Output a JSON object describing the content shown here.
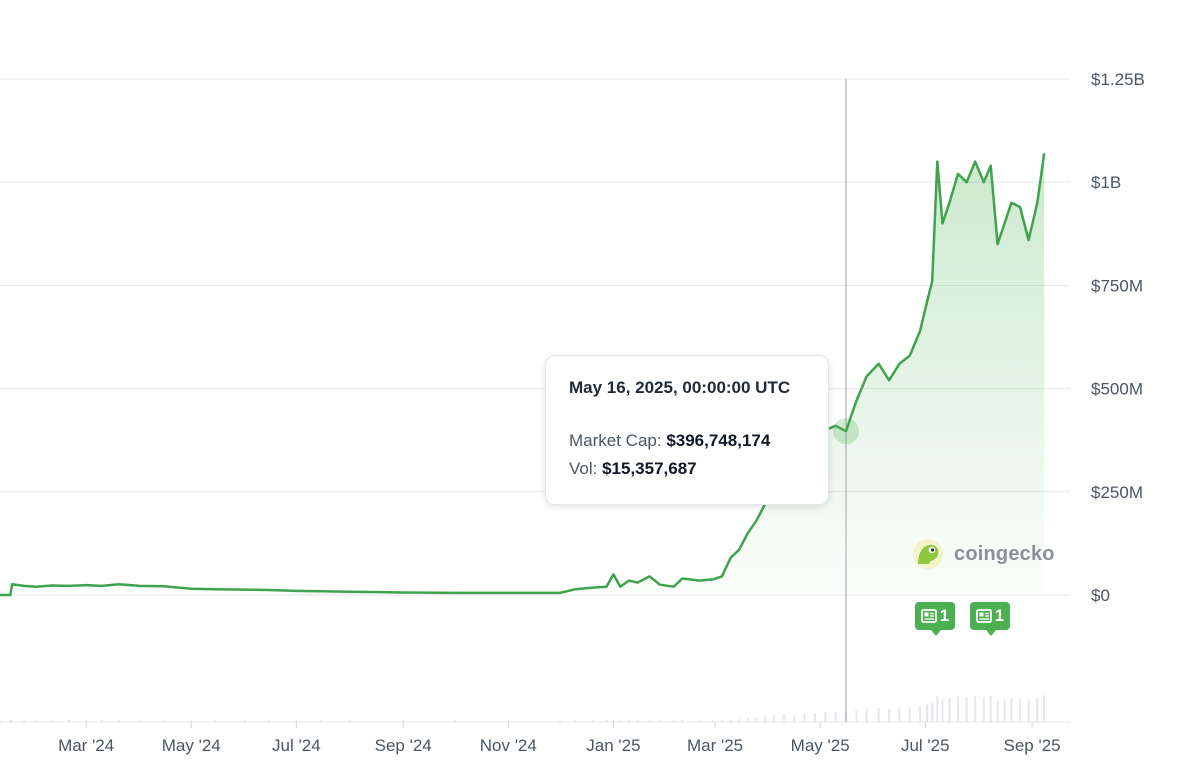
{
  "chart_data": {
    "type": "area",
    "title": "",
    "xlabel": "",
    "ylabel": "",
    "colors": {
      "line": "#3fa34d",
      "fill": "#4caf50",
      "grid": "#e5e7eb",
      "cursor": "#9ca3af",
      "volume": "#e5e7eb"
    },
    "y_ticks": [
      "$0",
      "$250M",
      "$500M",
      "$750M",
      "$1B",
      "$1.25B"
    ],
    "y_tick_values": [
      0,
      250000000,
      500000000,
      750000000,
      1000000000,
      1250000000
    ],
    "ylim": [
      0,
      1250000000
    ],
    "x_ticks": [
      "Mar '24",
      "May '24",
      "Jul '24",
      "Sep '24",
      "Nov '24",
      "Jan '25",
      "Mar '25",
      "May '25",
      "Jul '25",
      "Sep '25"
    ],
    "x_tick_dates": [
      "2024-03-01",
      "2024-05-01",
      "2024-07-01",
      "2024-09-01",
      "2024-11-01",
      "2025-01-01",
      "2025-03-01",
      "2025-05-01",
      "2025-07-01",
      "2025-09-01"
    ],
    "xlim": [
      "2024-01-11",
      "2025-09-23"
    ],
    "series": [
      {
        "label": "Market Cap",
        "points": [
          [
            "2024-01-11",
            0
          ],
          [
            "2024-01-17",
            0
          ],
          [
            "2024-01-18",
            26000000
          ],
          [
            "2024-01-25",
            22000000
          ],
          [
            "2024-02-01",
            20000000
          ],
          [
            "2024-02-10",
            23000000
          ],
          [
            "2024-02-20",
            22000000
          ],
          [
            "2024-03-01",
            24000000
          ],
          [
            "2024-03-10",
            22000000
          ],
          [
            "2024-03-20",
            26000000
          ],
          [
            "2024-04-01",
            22000000
          ],
          [
            "2024-04-15",
            21000000
          ],
          [
            "2024-05-01",
            15000000
          ],
          [
            "2024-05-15",
            14000000
          ],
          [
            "2024-06-01",
            13000000
          ],
          [
            "2024-06-15",
            12000000
          ],
          [
            "2024-07-01",
            10000000
          ],
          [
            "2024-07-15",
            9000000
          ],
          [
            "2024-08-01",
            8000000
          ],
          [
            "2024-09-01",
            6000000
          ],
          [
            "2024-10-01",
            5000000
          ],
          [
            "2024-11-01",
            5000000
          ],
          [
            "2024-12-01",
            5000000
          ],
          [
            "2024-12-10",
            14000000
          ],
          [
            "2024-12-20",
            18000000
          ],
          [
            "2024-12-28",
            20000000
          ],
          [
            "2025-01-01",
            50000000
          ],
          [
            "2025-01-05",
            20000000
          ],
          [
            "2025-01-10",
            35000000
          ],
          [
            "2025-01-15",
            30000000
          ],
          [
            "2025-01-22",
            45000000
          ],
          [
            "2025-01-28",
            25000000
          ],
          [
            "2025-02-05",
            20000000
          ],
          [
            "2025-02-10",
            40000000
          ],
          [
            "2025-02-20",
            35000000
          ],
          [
            "2025-02-28",
            38000000
          ],
          [
            "2025-03-05",
            45000000
          ],
          [
            "2025-03-10",
            90000000
          ],
          [
            "2025-03-15",
            110000000
          ],
          [
            "2025-03-20",
            150000000
          ],
          [
            "2025-03-25",
            180000000
          ],
          [
            "2025-03-30",
            220000000
          ],
          [
            "2025-04-04",
            280000000
          ],
          [
            "2025-04-10",
            320000000
          ],
          [
            "2025-04-16",
            300000000
          ],
          [
            "2025-04-22",
            350000000
          ],
          [
            "2025-04-28",
            340000000
          ],
          [
            "2025-05-04",
            400000000
          ],
          [
            "2025-05-10",
            410000000
          ],
          [
            "2025-05-16",
            396748174
          ],
          [
            "2025-05-22",
            470000000
          ],
          [
            "2025-05-28",
            530000000
          ],
          [
            "2025-06-04",
            560000000
          ],
          [
            "2025-06-10",
            520000000
          ],
          [
            "2025-06-16",
            560000000
          ],
          [
            "2025-06-22",
            580000000
          ],
          [
            "2025-06-28",
            640000000
          ],
          [
            "2025-07-02",
            710000000
          ],
          [
            "2025-07-05",
            760000000
          ],
          [
            "2025-07-08",
            1050000000
          ],
          [
            "2025-07-11",
            900000000
          ],
          [
            "2025-07-15",
            950000000
          ],
          [
            "2025-07-20",
            1020000000
          ],
          [
            "2025-07-25",
            1000000000
          ],
          [
            "2025-07-30",
            1050000000
          ],
          [
            "2025-08-04",
            1000000000
          ],
          [
            "2025-08-08",
            1040000000
          ],
          [
            "2025-08-12",
            850000000
          ],
          [
            "2025-08-16",
            900000000
          ],
          [
            "2025-08-20",
            950000000
          ],
          [
            "2025-08-25",
            940000000
          ],
          [
            "2025-08-30",
            860000000
          ],
          [
            "2025-09-04",
            950000000
          ],
          [
            "2025-09-08",
            1070000000
          ]
        ]
      }
    ],
    "cursor_date": "2025-05-16",
    "grid": true,
    "legend": "none"
  },
  "tooltip": {
    "date": "May 16, 2025, 00:00:00 UTC",
    "market_cap_label": "Market Cap: ",
    "market_cap_value": "$396,748,174",
    "vol_label": "Vol: ",
    "vol_value": "$15,357,687"
  },
  "watermark": {
    "text": "coingecko",
    "icon": "gecko-logo-icon"
  },
  "news_badges": [
    {
      "icon": "newspaper-icon",
      "count": "1"
    },
    {
      "icon": "newspaper-icon",
      "count": "1"
    }
  ]
}
